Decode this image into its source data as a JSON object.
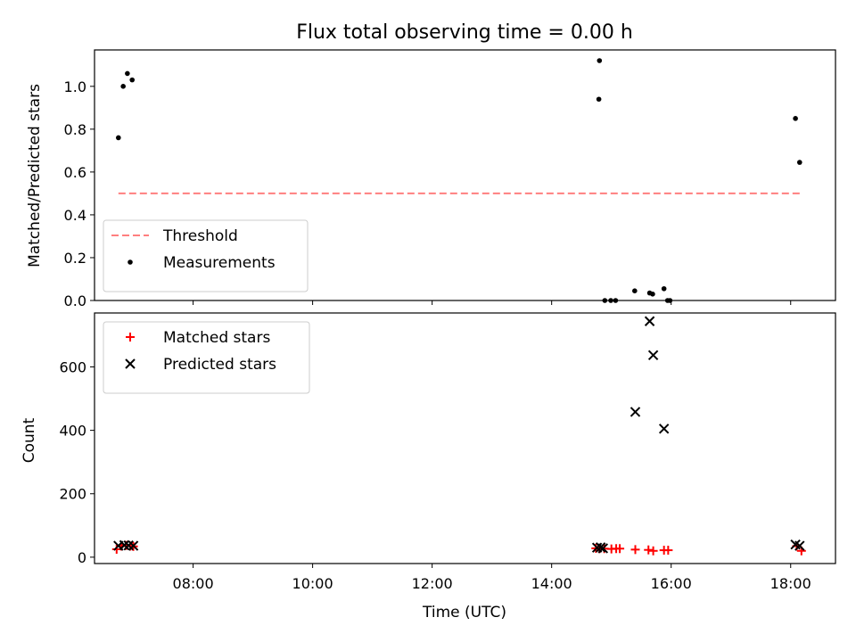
{
  "chart_data": {
    "title": "Flux total observing time = 0.00 h",
    "xlabel": "Time (UTC)",
    "x_ticks": [
      "08:00",
      "10:00",
      "12:00",
      "14:00",
      "16:00",
      "18:00"
    ],
    "x_tick_hours": [
      8,
      10,
      12,
      14,
      16,
      18
    ],
    "xlim_hours": [
      6.35,
      18.75
    ],
    "panels": [
      {
        "type": "scatter",
        "ylabel": "Matched/Predicted stars",
        "ylim": [
          0,
          1.17
        ],
        "y_ticks": [
          "0.0",
          "0.2",
          "0.4",
          "0.6",
          "0.8",
          "1.0"
        ],
        "y_tick_values": [
          0,
          0.2,
          0.4,
          0.6,
          0.8,
          1.0
        ],
        "legend_position": "lower-left",
        "threshold": {
          "name": "Threshold",
          "value": 0.5,
          "x_hours": [
            6.75,
            18.17
          ],
          "color": "#ff7f7f",
          "style": "dashed"
        },
        "series": [
          {
            "name": "Measurements",
            "marker": "dot",
            "color": "#000000",
            "points": [
              [
                6.75,
                0.76
              ],
              [
                6.83,
                1.0
              ],
              [
                6.9,
                1.06
              ],
              [
                6.98,
                1.03
              ],
              [
                14.8,
                1.12
              ],
              [
                14.79,
                0.94
              ],
              [
                14.89,
                0.0
              ],
              [
                14.99,
                0.0
              ],
              [
                15.07,
                0.0
              ],
              [
                15.39,
                0.045
              ],
              [
                15.64,
                0.035
              ],
              [
                15.69,
                0.03
              ],
              [
                15.88,
                0.055
              ],
              [
                15.94,
                0.0
              ],
              [
                15.98,
                0.0
              ],
              [
                18.08,
                0.85
              ],
              [
                18.15,
                0.645
              ]
            ]
          }
        ]
      },
      {
        "type": "scatter",
        "ylabel": "Count",
        "ylim": [
          -20,
          770
        ],
        "y_ticks": [
          "0",
          "200",
          "400",
          "600"
        ],
        "y_tick_values": [
          0,
          200,
          400,
          600
        ],
        "legend_position": "top-left",
        "series": [
          {
            "name": "Matched stars",
            "marker": "plus",
            "color": "#ff0000",
            "points": [
              [
                6.72,
                25
              ],
              [
                6.8,
                35
              ],
              [
                6.88,
                37
              ],
              [
                6.95,
                35
              ],
              [
                7.0,
                34
              ],
              [
                14.74,
                28
              ],
              [
                14.8,
                27
              ],
              [
                14.88,
                27
              ],
              [
                15.0,
                26
              ],
              [
                15.08,
                27
              ],
              [
                15.14,
                27
              ],
              [
                15.4,
                24
              ],
              [
                15.62,
                23
              ],
              [
                15.7,
                20
              ],
              [
                15.88,
                22
              ],
              [
                15.95,
                22
              ],
              [
                18.1,
                35
              ],
              [
                18.18,
                20
              ]
            ]
          },
          {
            "name": "Predicted stars",
            "marker": "x",
            "color": "#000000",
            "points": [
              [
                6.75,
                36
              ],
              [
                6.85,
                38
              ],
              [
                6.92,
                37
              ],
              [
                7.0,
                36
              ],
              [
                14.76,
                30
              ],
              [
                14.82,
                31
              ],
              [
                14.86,
                28
              ],
              [
                15.4,
                458
              ],
              [
                15.64,
                744
              ],
              [
                15.7,
                637
              ],
              [
                15.88,
                405
              ],
              [
                18.08,
                40
              ],
              [
                18.15,
                36
              ]
            ]
          }
        ]
      }
    ]
  }
}
